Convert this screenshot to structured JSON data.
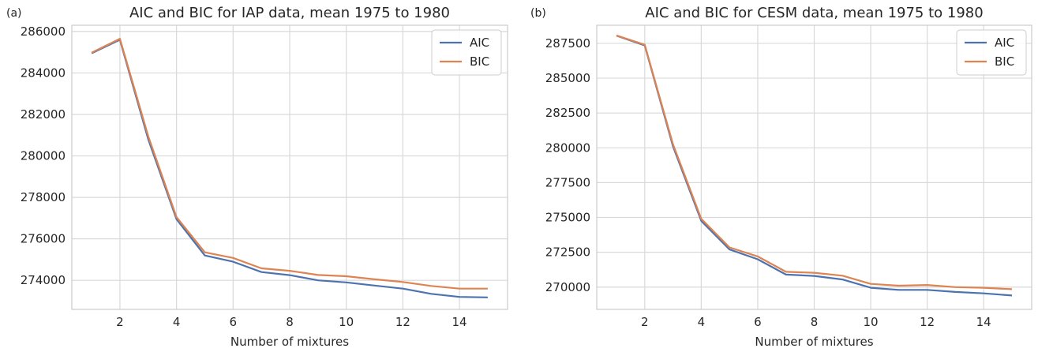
{
  "chart_data": [
    {
      "type": "line",
      "panel_label": "(a)",
      "title": "AIC and BIC for IAP data, mean 1975 to 1980",
      "xlabel": "Number of mixtures",
      "ylabel": "",
      "x": [
        1,
        2,
        3,
        4,
        5,
        6,
        7,
        8,
        9,
        10,
        11,
        12,
        13,
        14,
        15
      ],
      "xlim": [
        0.3,
        15.7
      ],
      "ylim": [
        272600,
        286300
      ],
      "xticks": [
        2,
        4,
        6,
        8,
        10,
        12,
        14
      ],
      "yticks": [
        274000,
        276000,
        278000,
        280000,
        282000,
        284000,
        286000
      ],
      "grid": true,
      "legend_position": "top-right",
      "series": [
        {
          "name": "AIC",
          "color": "#4c72b0",
          "values": [
            284950,
            285600,
            280800,
            276950,
            275200,
            274900,
            274400,
            274250,
            274000,
            273900,
            273750,
            273600,
            273350,
            273200,
            273180
          ]
        },
        {
          "name": "BIC",
          "color": "#dd8452",
          "values": [
            284980,
            285650,
            280950,
            277050,
            275350,
            275080,
            274580,
            274460,
            274260,
            274200,
            274050,
            273920,
            273730,
            273600,
            273600
          ]
        }
      ]
    },
    {
      "type": "line",
      "panel_label": "(b)",
      "title": "AIC and BIC for CESM data, mean 1975 to 1980",
      "xlabel": "Number of mixtures",
      "ylabel": "",
      "x": [
        1,
        2,
        3,
        4,
        5,
        6,
        7,
        8,
        9,
        10,
        11,
        12,
        13,
        14,
        15
      ],
      "xlim": [
        0.3,
        15.7
      ],
      "ylim": [
        268400,
        288800
      ],
      "xticks": [
        2,
        4,
        6,
        8,
        10,
        12,
        14
      ],
      "yticks": [
        270000,
        272500,
        275000,
        277500,
        280000,
        282500,
        285000,
        287500
      ],
      "grid": true,
      "legend_position": "top-right",
      "series": [
        {
          "name": "AIC",
          "color": "#4c72b0",
          "values": [
            288050,
            287350,
            280100,
            274750,
            272700,
            272000,
            270900,
            270800,
            270550,
            269950,
            269800,
            269800,
            269650,
            269550,
            269400
          ]
        },
        {
          "name": "BIC",
          "color": "#dd8452",
          "values": [
            288070,
            287400,
            280250,
            274900,
            272850,
            272200,
            271100,
            271030,
            270820,
            270230,
            270100,
            270150,
            270000,
            269950,
            269850
          ]
        }
      ]
    }
  ]
}
